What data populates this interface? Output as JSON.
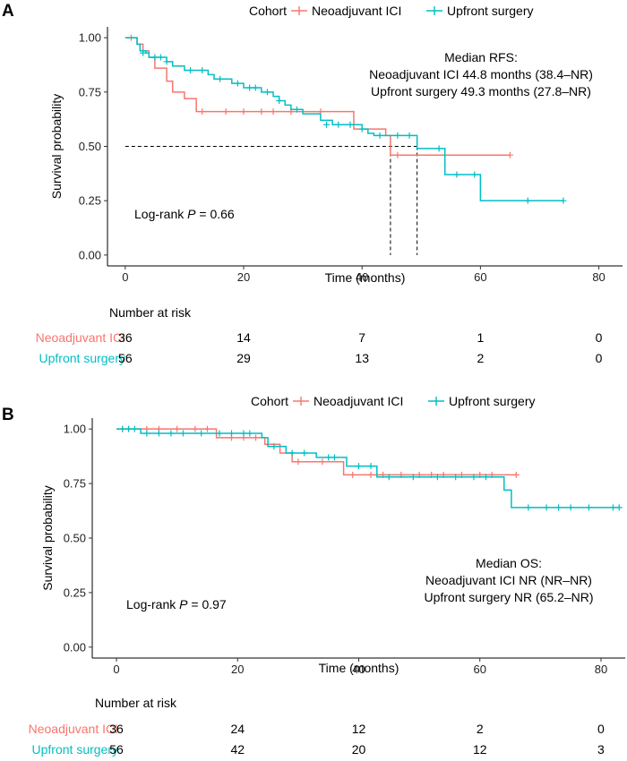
{
  "chart_data": [
    {
      "type": "line",
      "subtype": "kaplan-meier",
      "panel": "A",
      "legend": {
        "title": "Cohort",
        "placement": "top",
        "entries": [
          {
            "name": "Neoadjuvant ICI",
            "color": "#F8766D"
          },
          {
            "name": "Upfront surgery",
            "color": "#00BFC4"
          }
        ]
      },
      "xlabel": "Time (months)",
      "ylabel": "Survival probability",
      "xlim": [
        -3,
        84
      ],
      "ylim": [
        -0.05,
        1.05
      ],
      "xticks": [
        0,
        20,
        40,
        60,
        80
      ],
      "yticks": [
        "0.00",
        "0.25",
        "0.50",
        "0.75",
        "1.00"
      ],
      "annotation_lines": [
        "Median RFS:",
        "Neoadjuvant ICI 44.8 months (38.4–NR)",
        "Upfront surgery 49.3 months (27.8–NR)"
      ],
      "logrank_prefix": "Log-rank ",
      "logrank_p": "P",
      "logrank_value": " = 0.66",
      "median_line": {
        "y": 0.5,
        "medians": [
          44.8,
          49.3
        ]
      },
      "series": [
        {
          "name": "Neoadjuvant ICI",
          "color": "#F8766D",
          "steps": [
            [
              0,
              1.0
            ],
            [
              1.5,
              1.0
            ],
            [
              2,
              0.97
            ],
            [
              3,
              0.94
            ],
            [
              4,
              0.91
            ],
            [
              5,
              0.86
            ],
            [
              7,
              0.8
            ],
            [
              8,
              0.75
            ],
            [
              10,
              0.72
            ],
            [
              12,
              0.66
            ],
            [
              38.4,
              0.66
            ],
            [
              38.6,
              0.58
            ],
            [
              44,
              0.55
            ],
            [
              44.8,
              0.46
            ],
            [
              65,
              0.46
            ]
          ],
          "censors": [
            [
              1,
              1.0
            ],
            [
              13,
              0.66
            ],
            [
              17,
              0.66
            ],
            [
              20,
              0.66
            ],
            [
              23,
              0.66
            ],
            [
              25,
              0.66
            ],
            [
              28,
              0.66
            ],
            [
              33,
              0.66
            ],
            [
              46,
              0.46
            ],
            [
              65,
              0.46
            ]
          ]
        },
        {
          "name": "Upfront surgery",
          "color": "#00BFC4",
          "steps": [
            [
              0,
              1.0
            ],
            [
              2,
              0.97
            ],
            [
              2.5,
              0.94
            ],
            [
              3.5,
              0.93
            ],
            [
              4,
              0.91
            ],
            [
              7,
              0.89
            ],
            [
              8,
              0.87
            ],
            [
              10,
              0.85
            ],
            [
              14,
              0.83
            ],
            [
              15,
              0.81
            ],
            [
              18,
              0.79
            ],
            [
              20,
              0.77
            ],
            [
              23,
              0.75
            ],
            [
              25,
              0.73
            ],
            [
              26,
              0.71
            ],
            [
              27,
              0.69
            ],
            [
              28,
              0.67
            ],
            [
              30,
              0.65
            ],
            [
              33,
              0.62
            ],
            [
              35,
              0.6
            ],
            [
              40,
              0.58
            ],
            [
              41,
              0.56
            ],
            [
              42,
              0.55
            ],
            [
              49.3,
              0.55
            ],
            [
              49.3,
              0.49
            ],
            [
              54,
              0.37
            ],
            [
              60,
              0.25
            ],
            [
              74,
              0.25
            ]
          ],
          "censors": [
            [
              3,
              0.93
            ],
            [
              5,
              0.91
            ],
            [
              6,
              0.91
            ],
            [
              7,
              0.89
            ],
            [
              11,
              0.85
            ],
            [
              13,
              0.85
            ],
            [
              16,
              0.81
            ],
            [
              19,
              0.79
            ],
            [
              21,
              0.77
            ],
            [
              22,
              0.77
            ],
            [
              24,
              0.75
            ],
            [
              26,
              0.71
            ],
            [
              29,
              0.67
            ],
            [
              34,
              0.6
            ],
            [
              36,
              0.6
            ],
            [
              38,
              0.6
            ],
            [
              40,
              0.58
            ],
            [
              43,
              0.55
            ],
            [
              46,
              0.55
            ],
            [
              48,
              0.55
            ],
            [
              53,
              0.49
            ],
            [
              56,
              0.37
            ],
            [
              59,
              0.37
            ],
            [
              68,
              0.25
            ],
            [
              74,
              0.25
            ]
          ]
        }
      ],
      "risk_table": {
        "title": "Number at risk",
        "times": [
          0,
          20,
          40,
          60,
          80
        ],
        "rows": [
          {
            "name": "Neoadjuvant ICI",
            "color": "#F8766D",
            "values": [
              "36",
              "14",
              "7",
              "1",
              "0"
            ]
          },
          {
            "name": "Upfront surgery",
            "color": "#00BFC4",
            "values": [
              "56",
              "29",
              "13",
              "2",
              "0"
            ]
          }
        ]
      }
    },
    {
      "type": "line",
      "subtype": "kaplan-meier",
      "panel": "B",
      "legend": {
        "title": "Cohort",
        "placement": "top",
        "entries": [
          {
            "name": "Neoadjuvant ICI",
            "color": "#F8766D"
          },
          {
            "name": "Upfront surgery",
            "color": "#00BFC4"
          }
        ]
      },
      "xlabel": "Time (months)",
      "ylabel": "Survival probability",
      "xlim": [
        -4,
        84
      ],
      "ylim": [
        -0.05,
        1.05
      ],
      "xticks": [
        0,
        20,
        40,
        60,
        80
      ],
      "yticks": [
        "0.00",
        "0.25",
        "0.50",
        "0.75",
        "1.00"
      ],
      "annotation_lines": [
        "Median OS:",
        "Neoadjuvant ICI NR (NR–NR)",
        "Upfront surgery NR (65.2–NR)"
      ],
      "logrank_prefix": "Log-rank ",
      "logrank_p": "P",
      "logrank_value": " = 0.97",
      "series": [
        {
          "name": "Neoadjuvant ICI",
          "color": "#F8766D",
          "steps": [
            [
              0,
              1.0
            ],
            [
              16.5,
              1.0
            ],
            [
              16.5,
              0.96
            ],
            [
              24.5,
              0.96
            ],
            [
              24.5,
              0.93
            ],
            [
              27,
              0.93
            ],
            [
              27,
              0.89
            ],
            [
              29,
              0.89
            ],
            [
              29,
              0.85
            ],
            [
              37.5,
              0.85
            ],
            [
              37.5,
              0.79
            ],
            [
              66,
              0.79
            ]
          ],
          "censors": [
            [
              1,
              1.0
            ],
            [
              2,
              1.0
            ],
            [
              5,
              1.0
            ],
            [
              7,
              1.0
            ],
            [
              10,
              1.0
            ],
            [
              13,
              1.0
            ],
            [
              15,
              1.0
            ],
            [
              19,
              0.96
            ],
            [
              21,
              0.96
            ],
            [
              23,
              0.96
            ],
            [
              30,
              0.85
            ],
            [
              34,
              0.85
            ],
            [
              39,
              0.79
            ],
            [
              42,
              0.79
            ],
            [
              44,
              0.79
            ],
            [
              47,
              0.79
            ],
            [
              50,
              0.79
            ],
            [
              52,
              0.79
            ],
            [
              54,
              0.79
            ],
            [
              57,
              0.79
            ],
            [
              60,
              0.79
            ],
            [
              62,
              0.79
            ],
            [
              66,
              0.79
            ]
          ]
        },
        {
          "name": "Upfront surgery",
          "color": "#00BFC4",
          "steps": [
            [
              0,
              1.0
            ],
            [
              4,
              1.0
            ],
            [
              4,
              0.98
            ],
            [
              24,
              0.98
            ],
            [
              24,
              0.96
            ],
            [
              25,
              0.96
            ],
            [
              25,
              0.92
            ],
            [
              28,
              0.92
            ],
            [
              28,
              0.89
            ],
            [
              33,
              0.89
            ],
            [
              33,
              0.87
            ],
            [
              38,
              0.87
            ],
            [
              38,
              0.83
            ],
            [
              43,
              0.83
            ],
            [
              43,
              0.78
            ],
            [
              64,
              0.78
            ],
            [
              64,
              0.72
            ],
            [
              65.2,
              0.72
            ],
            [
              65.2,
              0.64
            ],
            [
              83,
              0.64
            ]
          ],
          "censors": [
            [
              1,
              1.0
            ],
            [
              2,
              1.0
            ],
            [
              3,
              1.0
            ],
            [
              5,
              0.98
            ],
            [
              7,
              0.98
            ],
            [
              9,
              0.98
            ],
            [
              11,
              0.98
            ],
            [
              14,
              0.98
            ],
            [
              17,
              0.98
            ],
            [
              19,
              0.98
            ],
            [
              21,
              0.98
            ],
            [
              22,
              0.98
            ],
            [
              26,
              0.92
            ],
            [
              29,
              0.89
            ],
            [
              31,
              0.89
            ],
            [
              35,
              0.87
            ],
            [
              36,
              0.87
            ],
            [
              40,
              0.83
            ],
            [
              42,
              0.83
            ],
            [
              45,
              0.78
            ],
            [
              49,
              0.78
            ],
            [
              53,
              0.78
            ],
            [
              56,
              0.78
            ],
            [
              59,
              0.78
            ],
            [
              61,
              0.78
            ],
            [
              68,
              0.64
            ],
            [
              71,
              0.64
            ],
            [
              73,
              0.64
            ],
            [
              75,
              0.64
            ],
            [
              78,
              0.64
            ],
            [
              82,
              0.64
            ],
            [
              83,
              0.64
            ]
          ]
        }
      ],
      "risk_table": {
        "title": "Number at risk",
        "times": [
          0,
          20,
          40,
          60,
          80
        ],
        "rows": [
          {
            "name": "Neoadjuvant ICI",
            "color": "#F8766D",
            "values": [
              "36",
              "24",
              "12",
              "2",
              "0"
            ]
          },
          {
            "name": "Upfront surgery",
            "color": "#00BFC4",
            "values": [
              "56",
              "42",
              "20",
              "12",
              "3"
            ]
          }
        ]
      }
    }
  ]
}
